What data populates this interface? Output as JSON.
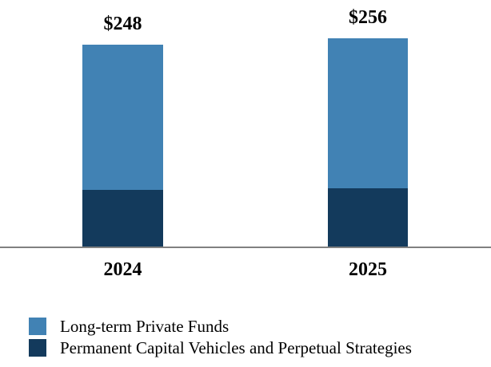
{
  "chart_data": {
    "type": "bar",
    "stacked": true,
    "categories": [
      "2024",
      "2025"
    ],
    "series": [
      {
        "name": "Long-term Private Funds",
        "color": "#4182B4",
        "values": [
          178,
          184
        ]
      },
      {
        "name": "Permanent Capital Vehicles and Perpetual Strategies",
        "color": "#133A5C",
        "values": [
          70,
          72
        ]
      }
    ],
    "totals": [
      248,
      256
    ],
    "total_labels": [
      "$248",
      "$256"
    ],
    "value_prefix": "$",
    "ylim": [
      0,
      270
    ],
    "grid": false,
    "legend_position": "bottom-left",
    "axis_color": "#808080",
    "background": "#FFFFFF"
  }
}
